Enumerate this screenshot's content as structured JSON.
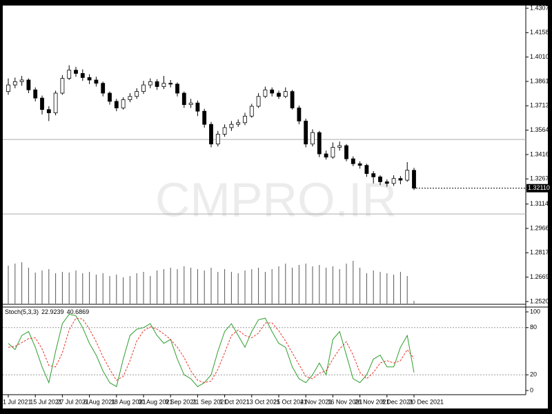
{
  "chart_data": {
    "type": "candlestick",
    "watermark": "CMPRO.IR",
    "categories": [
      "1 Jul 2021",
      null,
      null,
      null,
      "15 Jul 2021",
      null,
      null,
      null,
      "27 Jul 2021",
      null,
      null,
      null,
      "6 Aug 2021",
      null,
      null,
      null,
      "18 Aug 2021",
      null,
      null,
      null,
      "30 Aug 2021",
      null,
      null,
      null,
      "9 Sep 2021",
      null,
      null,
      null,
      "21 Sep 2021",
      null,
      null,
      null,
      "1 Oct 2021",
      null,
      null,
      null,
      "13 Oct 2021",
      null,
      null,
      null,
      "25 Oct 2021",
      null,
      null,
      null,
      "4 Nov 2021",
      null,
      null,
      null,
      "16 Nov 2021",
      null,
      null,
      null,
      "26 Nov 2021",
      null,
      null,
      null,
      "8 Dec 2021",
      null,
      null,
      null,
      "20 Dec 2021"
    ],
    "candles": [
      [
        1.38,
        1.388,
        1.378,
        1.384
      ],
      [
        1.384,
        1.3885,
        1.382,
        1.386
      ],
      [
        1.386,
        1.3895,
        1.3835,
        1.387
      ],
      [
        1.387,
        1.388,
        1.379,
        1.381
      ],
      [
        1.381,
        1.3825,
        1.374,
        1.376
      ],
      [
        1.376,
        1.3775,
        1.366,
        1.369
      ],
      [
        1.369,
        1.371,
        1.362,
        1.367
      ],
      [
        1.367,
        1.3805,
        1.3655,
        1.379
      ],
      [
        1.379,
        1.39,
        1.378,
        1.388
      ],
      [
        1.388,
        1.396,
        1.387,
        1.393
      ],
      [
        1.393,
        1.395,
        1.389,
        1.391
      ],
      [
        1.391,
        1.3935,
        1.3865,
        1.3885
      ],
      [
        1.3885,
        1.3905,
        1.3845,
        1.387
      ],
      [
        1.387,
        1.389,
        1.383,
        1.385
      ],
      [
        1.385,
        1.386,
        1.377,
        1.379
      ],
      [
        1.379,
        1.38,
        1.372,
        1.374
      ],
      [
        1.374,
        1.3755,
        1.368,
        1.37
      ],
      [
        1.37,
        1.3765,
        1.369,
        1.375
      ],
      [
        1.375,
        1.379,
        1.3735,
        1.377
      ],
      [
        1.377,
        1.382,
        1.3755,
        1.38
      ],
      [
        1.38,
        1.3865,
        1.3785,
        1.384
      ],
      [
        1.384,
        1.388,
        1.382,
        1.386
      ],
      [
        1.386,
        1.3875,
        1.381,
        1.383
      ],
      [
        1.383,
        1.3895,
        1.3815,
        1.385
      ],
      [
        1.385,
        1.387,
        1.3825,
        1.3845
      ],
      [
        1.3845,
        1.3855,
        1.377,
        1.379
      ],
      [
        1.379,
        1.38,
        1.37,
        1.372
      ],
      [
        1.372,
        1.3755,
        1.37,
        1.373
      ],
      [
        1.373,
        1.3745,
        1.365,
        1.368
      ],
      [
        1.368,
        1.3695,
        1.358,
        1.36
      ],
      [
        1.36,
        1.3615,
        1.346,
        1.348
      ],
      [
        1.348,
        1.356,
        1.3465,
        1.354
      ],
      [
        1.354,
        1.36,
        1.3525,
        1.358
      ],
      [
        1.358,
        1.362,
        1.356,
        1.36
      ],
      [
        1.36,
        1.363,
        1.3585,
        1.361
      ],
      [
        1.361,
        1.367,
        1.3595,
        1.365
      ],
      [
        1.365,
        1.3725,
        1.364,
        1.371
      ],
      [
        1.371,
        1.379,
        1.37,
        1.377
      ],
      [
        1.377,
        1.383,
        1.376,
        1.381
      ],
      [
        1.381,
        1.3825,
        1.377,
        1.379
      ],
      [
        1.379,
        1.3805,
        1.3755,
        1.377
      ],
      [
        1.377,
        1.3825,
        1.376,
        1.38
      ],
      [
        1.38,
        1.381,
        1.369,
        1.37
      ],
      [
        1.37,
        1.3715,
        1.36,
        1.362
      ],
      [
        1.362,
        1.3635,
        1.346,
        1.348
      ],
      [
        1.348,
        1.357,
        1.3465,
        1.355
      ],
      [
        1.355,
        1.356,
        1.34,
        1.342
      ],
      [
        1.342,
        1.344,
        1.3385,
        1.34
      ],
      [
        1.34,
        1.349,
        1.339,
        1.346
      ],
      [
        1.346,
        1.3495,
        1.344,
        1.347
      ],
      [
        1.347,
        1.348,
        1.3375,
        1.339
      ],
      [
        1.339,
        1.3405,
        1.3345,
        1.336
      ],
      [
        1.336,
        1.3375,
        1.333,
        1.335
      ],
      [
        1.335,
        1.336,
        1.328,
        1.33
      ],
      [
        1.33,
        1.3315,
        1.324,
        1.328
      ],
      [
        1.328,
        1.329,
        1.323,
        1.325
      ],
      [
        1.325,
        1.3265,
        1.322,
        1.324
      ],
      [
        1.324,
        1.329,
        1.3225,
        1.327
      ],
      [
        1.327,
        1.3285,
        1.3235,
        1.326
      ],
      [
        1.326,
        1.337,
        1.325,
        1.332
      ],
      [
        1.332,
        1.3335,
        1.32,
        1.3211
      ]
    ],
    "volume": [
      55,
      58,
      60,
      52,
      45,
      48,
      50,
      44,
      46,
      45,
      48,
      44,
      46,
      42,
      44,
      40,
      42,
      38,
      40,
      44,
      46,
      40,
      48,
      50,
      52,
      50,
      54,
      52,
      50,
      48,
      52,
      46,
      50,
      46,
      44,
      48,
      50,
      52,
      46,
      50,
      54,
      58,
      52,
      56,
      58,
      54,
      56,
      52,
      54,
      50,
      58,
      62,
      52,
      44,
      48,
      46,
      44,
      42,
      46,
      40,
      4
    ],
    "ylim": [
      1.25205,
      1.4307
    ],
    "yticks": [
      {
        "value": 1.4307,
        "label": "1.43070"
      },
      1.41585,
      {
        "value": 1.401,
        "label": "1.40100"
      },
      1.38615,
      {
        "value": 1.3713,
        "label": "1.37130"
      },
      1.35645,
      {
        "value": 1.3416,
        "label": "1.34160"
      },
      1.32675,
      1.31145,
      {
        "value": 1.2966,
        "label": "1.29660"
      },
      1.28175,
      {
        "value": 1.2669,
        "label": "1.26690"
      },
      1.25205
    ],
    "last_price": {
      "value": 1.3211,
      "label": "1.32110"
    },
    "levels": [
      1.3508,
      1.3054
    ],
    "stoch": {
      "name": "Stoch(5,3,3)",
      "k": [
        60,
        52,
        70,
        75,
        55,
        30,
        10,
        50,
        85,
        97,
        95,
        80,
        60,
        45,
        25,
        10,
        5,
        40,
        70,
        78,
        80,
        85,
        70,
        60,
        65,
        40,
        20,
        15,
        5,
        10,
        20,
        50,
        75,
        85,
        70,
        55,
        75,
        90,
        92,
        75,
        60,
        55,
        30,
        15,
        10,
        20,
        35,
        20,
        65,
        75,
        45,
        15,
        10,
        20,
        40,
        45,
        30,
        30,
        55,
        70,
        22.9239
      ],
      "d": [
        55,
        56,
        61,
        66,
        67,
        53,
        32,
        30,
        48,
        77,
        92,
        91,
        78,
        62,
        43,
        27,
        13,
        18,
        38,
        63,
        76,
        81,
        78,
        72,
        65,
        55,
        42,
        25,
        13,
        10,
        12,
        27,
        48,
        70,
        77,
        70,
        67,
        73,
        86,
        86,
        76,
        63,
        48,
        33,
        18,
        15,
        22,
        25,
        40,
        53,
        62,
        45,
        23,
        15,
        23,
        35,
        38,
        35,
        38,
        52,
        40.6869
      ],
      "k_color": "#2e9e2e",
      "d_color": "#e8332a",
      "ylim": [
        0,
        100
      ],
      "yticks": [
        100,
        80,
        20,
        0
      ],
      "levels": [
        80,
        20
      ]
    }
  }
}
